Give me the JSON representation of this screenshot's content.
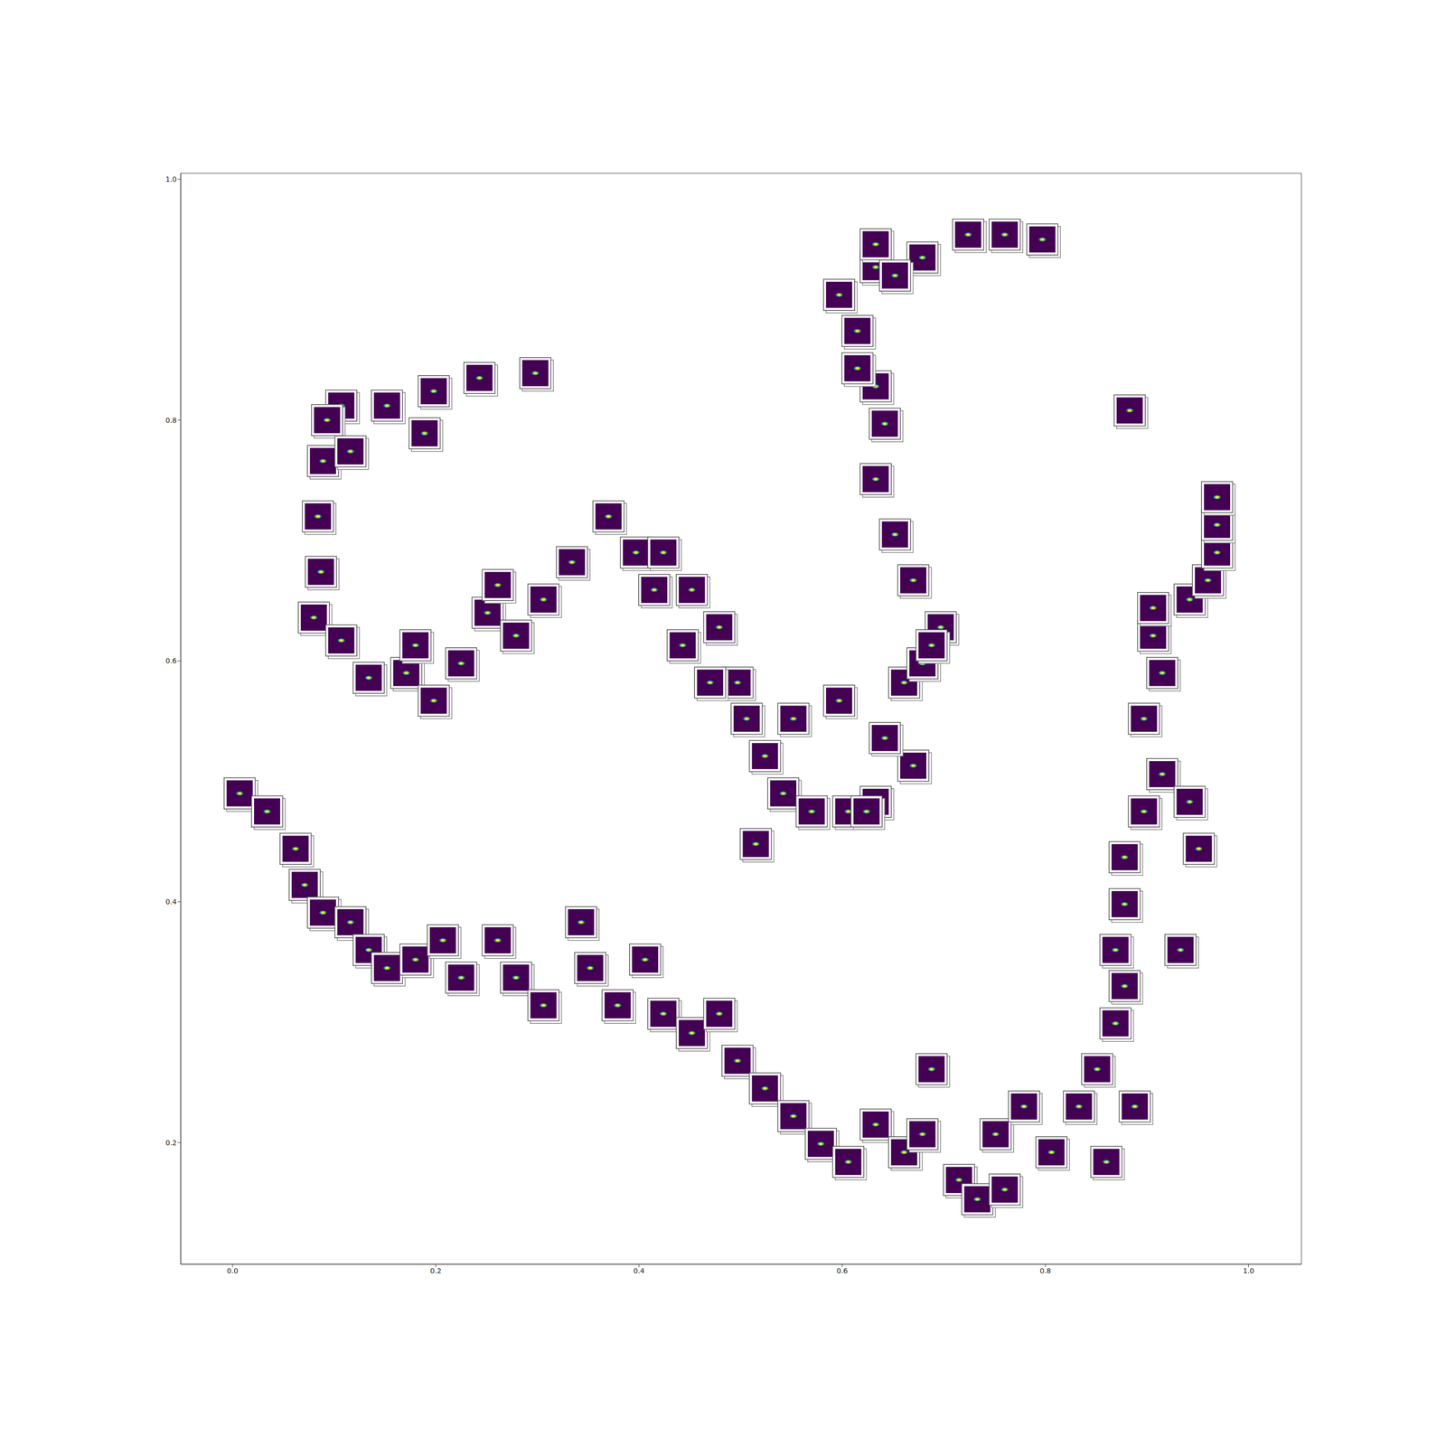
{
  "chart_data": {
    "type": "scatter",
    "marker": "image",
    "color": "#440154",
    "xlim": [
      -0.051,
      1.052
    ],
    "ylim": [
      0.099,
      1.005
    ],
    "xticks": [
      {
        "value": 0,
        "label": "0.0"
      },
      0.2,
      0.4,
      0.6,
      0.8,
      {
        "value": 1,
        "label": "1.0"
      }
    ],
    "yticks": [
      0.2,
      0.4,
      0.6,
      0.8,
      {
        "value": 1,
        "label": "1.0"
      }
    ],
    "grid": false,
    "x": [
      0.298,
      0.243,
      0.198,
      0.152,
      0.107,
      0.093,
      0.089,
      0.084,
      0.087,
      0.08,
      0.107,
      0.134,
      0.171,
      0.198,
      0.225,
      0.251,
      0.279,
      0.306,
      0.334,
      0.37,
      0.397,
      0.424,
      0.452,
      0.479,
      0.497,
      0.506,
      0.524,
      0.542,
      0.57,
      0.606,
      0.633,
      0.67,
      0.642,
      0.661,
      0.679,
      0.697,
      0.67,
      0.652,
      0.633,
      0.642,
      0.633,
      0.615,
      0.597,
      0.633,
      0.633,
      0.679,
      0.724,
      0.76,
      0.797,
      0.515,
      0.597,
      0.552,
      0.189,
      0.116,
      0.261,
      0.18,
      0.415,
      0.443,
      0.47,
      0.624,
      0.688,
      0.615,
      0.652,
      0.883,
      0.007,
      0.034,
      0.062,
      0.071,
      0.089,
      0.116,
      0.134,
      0.152,
      0.18,
      0.207,
      0.225,
      0.261,
      0.279,
      0.306,
      0.343,
      0.352,
      0.379,
      0.406,
      0.424,
      0.452,
      0.479,
      0.497,
      0.524,
      0.552,
      0.579,
      0.606,
      0.633,
      0.661,
      0.679,
      0.688,
      0.715,
      0.733,
      0.76,
      0.751,
      0.779,
      0.806,
      0.833,
      0.851,
      0.869,
      0.878,
      0.869,
      0.878,
      0.878,
      0.897,
      0.915,
      0.897,
      0.915,
      0.906,
      0.906,
      0.942,
      0.96,
      0.969,
      0.969,
      0.969,
      0.933,
      0.942,
      0.951,
      0.888,
      0.86
    ],
    "values": [
      0.839,
      0.835,
      0.824,
      0.812,
      0.812,
      0.8,
      0.766,
      0.72,
      0.674,
      0.636,
      0.617,
      0.586,
      0.59,
      0.567,
      0.598,
      0.64,
      0.621,
      0.651,
      0.682,
      0.72,
      0.69,
      0.69,
      0.659,
      0.628,
      0.582,
      0.552,
      0.521,
      0.49,
      0.475,
      0.475,
      0.483,
      0.513,
      0.536,
      0.582,
      0.598,
      0.628,
      0.667,
      0.705,
      0.751,
      0.797,
      0.828,
      0.874,
      0.904,
      0.927,
      0.946,
      0.935,
      0.954,
      0.954,
      0.95,
      0.448,
      0.567,
      0.552,
      0.789,
      0.774,
      0.663,
      0.613,
      0.659,
      0.613,
      0.582,
      0.475,
      0.613,
      0.843,
      0.92,
      0.808,
      0.49,
      0.475,
      0.444,
      0.414,
      0.391,
      0.383,
      0.36,
      0.345,
      0.352,
      0.368,
      0.337,
      0.368,
      0.337,
      0.314,
      0.383,
      0.345,
      0.314,
      0.352,
      0.307,
      0.291,
      0.307,
      0.268,
      0.245,
      0.222,
      0.199,
      0.184,
      0.215,
      0.192,
      0.207,
      0.261,
      0.169,
      0.153,
      0.161,
      0.207,
      0.23,
      0.192,
      0.23,
      0.261,
      0.299,
      0.33,
      0.36,
      0.398,
      0.437,
      0.475,
      0.506,
      0.552,
      0.59,
      0.621,
      0.644,
      0.651,
      0.667,
      0.69,
      0.713,
      0.736,
      0.36,
      0.483,
      0.444,
      0.23,
      0.184
    ]
  }
}
